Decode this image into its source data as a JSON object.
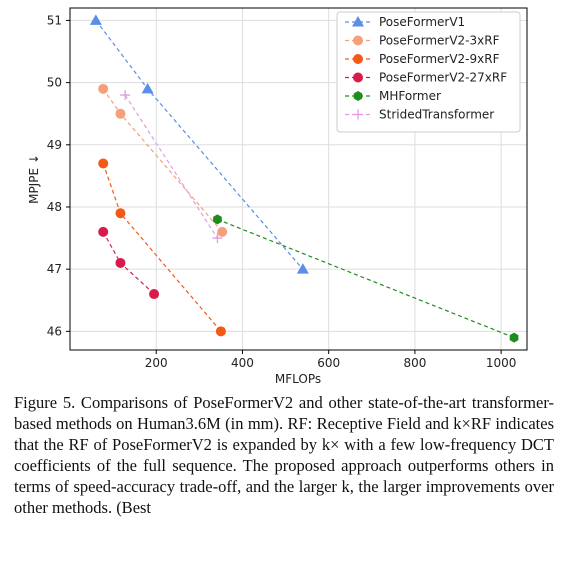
{
  "chart_data": {
    "type": "line",
    "xlabel": "MFLOPs",
    "ylabel": "MPJPE ↓",
    "xlim": [
      0,
      1060
    ],
    "ylim": [
      45.7,
      51.2
    ],
    "xticks": [
      200,
      400,
      600,
      800,
      1000
    ],
    "yticks": [
      46,
      47,
      48,
      49,
      50,
      51
    ],
    "grid": true,
    "legend_position": "top-right",
    "series": [
      {
        "name": "PoseFormerV1",
        "color": "#5b8ee6",
        "marker": "triangle",
        "x": [
          60,
          180,
          540
        ],
        "y": [
          51.0,
          49.9,
          47.0
        ]
      },
      {
        "name": "PoseFormerV2-3xRF",
        "color": "#f5a07a",
        "marker": "circle",
        "x": [
          77,
          117,
          353
        ],
        "y": [
          49.9,
          49.5,
          47.6
        ]
      },
      {
        "name": "PoseFormerV2-9xRF",
        "color": "#f25a16",
        "marker": "circle",
        "x": [
          77,
          117,
          350
        ],
        "y": [
          48.7,
          47.9,
          46.0
        ]
      },
      {
        "name": "PoseFormerV2-27xRF",
        "color": "#d81b4a",
        "marker": "circle",
        "x": [
          77,
          117,
          195
        ],
        "y": [
          47.6,
          47.1,
          46.6
        ]
      },
      {
        "name": "MHFormer",
        "color": "#1e8c1e",
        "marker": "hexagon",
        "x": [
          342,
          1030
        ],
        "y": [
          47.8,
          45.9
        ]
      },
      {
        "name": "StridedTransformer",
        "color": "#e39be6",
        "marker": "plus",
        "x": [
          128,
          342
        ],
        "y": [
          49.8,
          47.5
        ]
      }
    ]
  },
  "caption": {
    "line1": "Figure 5.  Comparisons of PoseFormerV2 and other state-of-the-art transformer-based methods on Human3.6M (in mm). RF: Receptive Field and k×RF indicates that the RF of PoseFormerV2 is expanded by k× with a few low-frequency DCT coefficients of the full sequence.  The proposed approach outperforms others in terms of speed-accuracy trade-off, and the larger k, the larger improvements over other methods. (Best"
  }
}
